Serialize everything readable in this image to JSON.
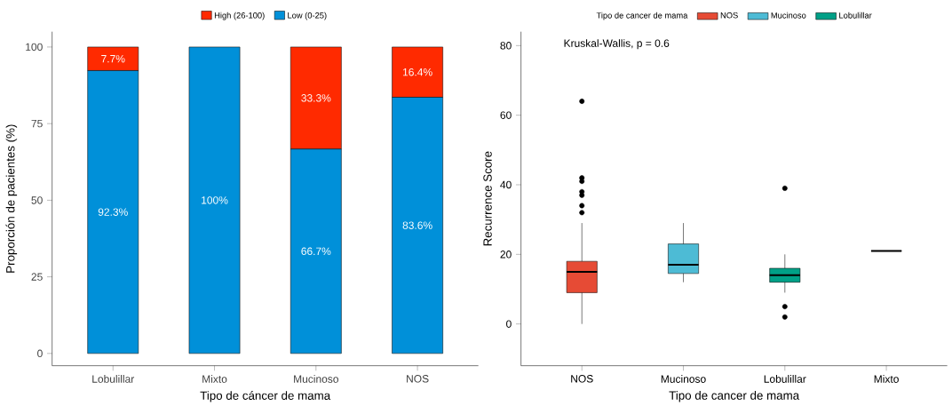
{
  "chart_data": [
    {
      "type": "bar",
      "stacked": true,
      "categories": [
        "Lobulillar",
        "Mixto",
        "Mucinoso",
        "NOS"
      ],
      "xlabel": "Tipo de cáncer de mama",
      "ylabel": "Proporción de pacientes (%)",
      "ylim": [
        -4,
        105
      ],
      "yticks": [
        0,
        25,
        50,
        75,
        100
      ],
      "legend": "top",
      "series": [
        {
          "name": "Low (0-25)",
          "color": "#0090d9",
          "values": [
            92.3,
            100,
            66.7,
            83.6
          ],
          "value_labels": [
            "92.3%",
            "100%",
            "66.7%",
            "83.6%"
          ]
        },
        {
          "name": "High (26-100)",
          "color": "#ff2a00",
          "values": [
            7.7,
            0,
            33.3,
            16.4
          ],
          "value_labels": [
            "7.7%",
            null,
            "33.3%",
            "16.4%"
          ]
        }
      ]
    },
    {
      "type": "box",
      "categories": [
        "NOS",
        "Mucinoso",
        "Lobulillar",
        "Mixto"
      ],
      "xlabel": "Tipo de cancer de mama",
      "ylabel": "Recurrence Score",
      "ylim": [
        -12,
        84
      ],
      "yticks": [
        0,
        20,
        40,
        60,
        80
      ],
      "legend": "top",
      "legend_title": "Tipo de cancer de mama",
      "annotations": [
        "Kruskal-Wallis, p = 0.6"
      ],
      "series": [
        {
          "name": "NOS",
          "color": "#e64b35",
          "boxes": [
            {
              "low": 0,
              "q1": 9,
              "median": 15,
              "q3": 18,
              "high": 29,
              "outliers": [
                32,
                34,
                37,
                38,
                41,
                42,
                64
              ]
            },
            null,
            null,
            null
          ]
        },
        {
          "name": "Mucinoso",
          "color": "#4dbbd5",
          "boxes": [
            null,
            {
              "low": 12,
              "q1": 14.5,
              "median": 17,
              "q3": 23,
              "high": 29
            },
            null,
            null
          ]
        },
        {
          "name": "Lobulillar",
          "color": "#00a087",
          "boxes": [
            null,
            null,
            {
              "low": 9,
              "q1": 12,
              "median": 14,
              "q3": 16,
              "high": 20,
              "outliers": [
                2,
                5,
                39
              ]
            },
            null
          ]
        },
        {
          "color": "#000000",
          "boxes": [
            null,
            null,
            null,
            {
              "low": 21,
              "q1": 21,
              "median": 21,
              "q3": 21,
              "high": 21
            }
          ]
        }
      ]
    }
  ]
}
